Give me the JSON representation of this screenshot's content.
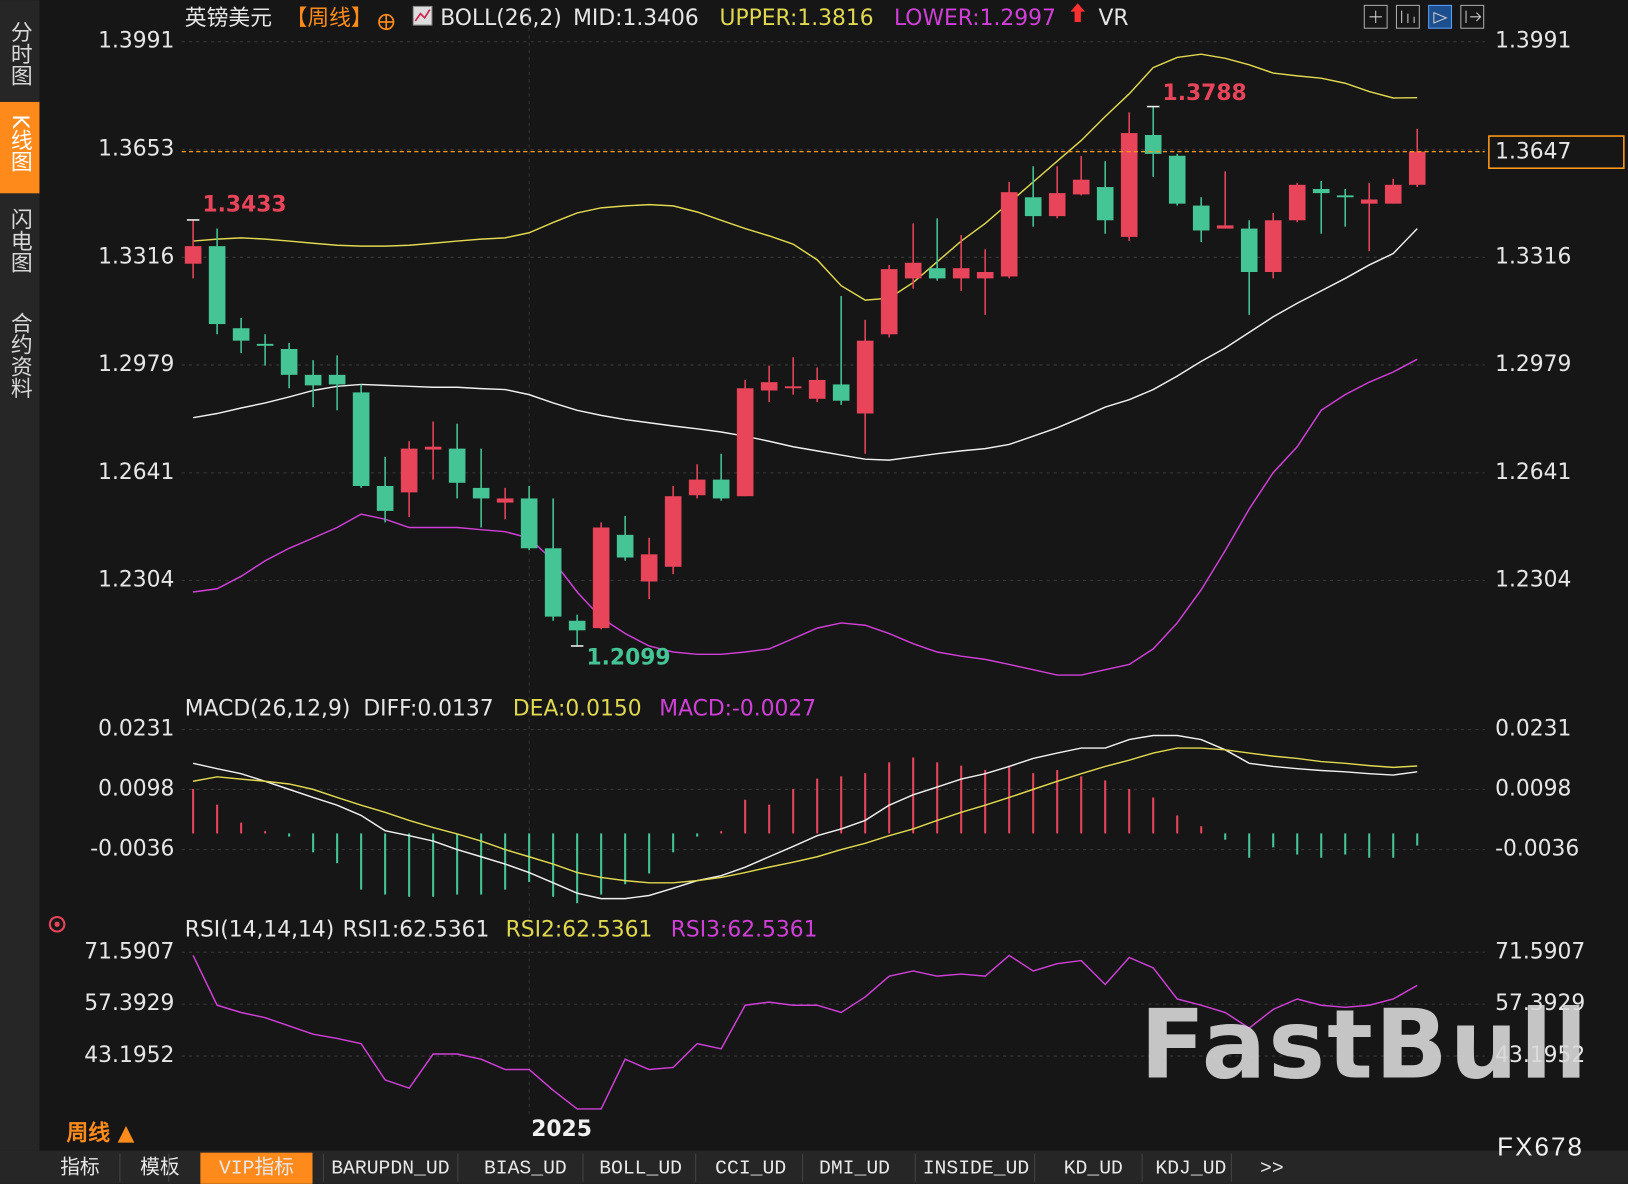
{
  "chart_data": [
    {
      "type": "candlestick",
      "legend": [
        {
          "text": "英镑美元",
          "color": "#e6e6e6"
        },
        {
          "text": "【周线】",
          "color": "#ff8c1a"
        },
        {
          "text": "BOLL(26,2)",
          "color": "#e6e6e6"
        },
        {
          "text": "MID:1.3406",
          "color": "#e6e6e6"
        },
        {
          "text": "UPPER:1.3816",
          "color": "#e0d850"
        },
        {
          "text": "LOWER:1.2997",
          "color": "#d040d8"
        },
        {
          "text": "VR",
          "color": "#e6e6e6"
        }
      ],
      "categories": [
        null,
        null,
        null,
        null,
        null,
        null,
        null,
        null,
        null,
        null,
        null,
        null,
        null,
        null,
        "2025",
        null,
        null,
        null,
        null,
        null,
        null,
        null,
        null,
        null,
        null,
        null,
        null,
        null,
        null,
        null,
        null,
        null,
        null,
        null,
        null,
        null,
        null,
        null,
        null,
        null,
        null,
        null,
        null,
        null,
        null,
        null,
        null,
        null,
        null,
        null,
        null,
        null
      ],
      "open": [
        1.3296,
        1.3351,
        1.3094,
        1.3045,
        1.3029,
        1.2948,
        1.2948,
        1.2893,
        1.26,
        1.258,
        1.2714,
        1.2717,
        1.2594,
        1.2548,
        1.2561,
        1.2405,
        1.2178,
        1.2155,
        1.2447,
        1.2301,
        1.2347,
        1.2571,
        1.262,
        1.2568,
        1.2899,
        1.2906,
        1.2873,
        1.2918,
        1.2827,
        1.3075,
        1.325,
        1.3282,
        1.325,
        1.325,
        1.3256,
        1.3504,
        1.3445,
        1.3513,
        1.3536,
        1.338,
        1.3699,
        1.3634,
        1.3478,
        1.3406,
        1.3406,
        1.327,
        1.3432,
        1.353,
        1.351,
        1.3484,
        1.3484,
        1.3543
      ],
      "high": [
        1.3433,
        1.3406,
        1.3126,
        1.3075,
        1.3048,
        1.2994,
        1.3009,
        1.2918,
        1.2691,
        1.274,
        1.2802,
        1.2795,
        1.2717,
        1.2594,
        1.26,
        1.2561,
        1.2197,
        1.2486,
        1.2506,
        1.2438,
        1.26,
        1.2668,
        1.2701,
        1.2932,
        1.2977,
        1.3003,
        1.2971,
        1.3195,
        1.312,
        1.3292,
        1.3422,
        1.3438,
        1.3386,
        1.3341,
        1.3552,
        1.3601,
        1.3601,
        1.3633,
        1.3617,
        1.377,
        1.3788,
        1.364,
        1.3504,
        1.3585,
        1.3432,
        1.3455,
        1.3549,
        1.3555,
        1.353,
        1.3549,
        1.3562,
        1.3718
      ],
      "low": [
        1.325,
        1.3075,
        1.3016,
        1.2977,
        1.2906,
        1.2847,
        1.2837,
        1.2594,
        1.2486,
        1.2503,
        1.262,
        1.2561,
        1.247,
        1.2496,
        1.2399,
        1.2178,
        1.2099,
        1.2151,
        1.2366,
        1.2246,
        1.2324,
        1.2561,
        1.2554,
        1.2568,
        1.2863,
        1.2886,
        1.2863,
        1.2854,
        1.2701,
        1.3065,
        1.3218,
        1.3243,
        1.3211,
        1.3136,
        1.325,
        1.3412,
        1.3438,
        1.351,
        1.339,
        1.3367,
        1.3568,
        1.3478,
        1.3364,
        1.3406,
        1.3136,
        1.325,
        1.3426,
        1.339,
        1.3412,
        1.3335,
        1.3484,
        1.3536
      ],
      "close": [
        1.3351,
        1.3107,
        1.3055,
        1.3039,
        1.2948,
        1.2915,
        1.2918,
        1.26,
        1.2522,
        1.2717,
        1.2723,
        1.261,
        1.2561,
        1.2561,
        1.2405,
        1.2191,
        1.2148,
        1.247,
        1.2376,
        1.2386,
        1.2568,
        1.262,
        1.2561,
        1.2906,
        1.2925,
        1.2912,
        1.2932,
        1.2867,
        1.3055,
        1.3279,
        1.3299,
        1.325,
        1.3282,
        1.327,
        1.352,
        1.3445,
        1.3517,
        1.3559,
        1.3432,
        1.3705,
        1.364,
        1.3484,
        1.34,
        1.3416,
        1.327,
        1.3432,
        1.3543,
        1.3517,
        1.3504,
        1.3497,
        1.3543,
        1.3647
      ],
      "up_color": "#e8445a",
      "down_color": "#45c495",
      "last_color": "#ff9a1a",
      "series": [
        {
          "color": "#e0d850",
          "values": [
            1.3367,
            1.3373,
            1.3377,
            1.3373,
            1.3367,
            1.336,
            1.3354,
            1.3351,
            1.3351,
            1.3354,
            1.336,
            1.3367,
            1.3373,
            1.3377,
            1.3393,
            1.3425,
            1.3455,
            1.3471,
            1.3477,
            1.3481,
            1.3477,
            1.3458,
            1.3432,
            1.3406,
            1.3383,
            1.3357,
            1.3308,
            1.3227,
            1.3182,
            1.3188,
            1.3237,
            1.3302,
            1.3367,
            1.3422,
            1.3487,
            1.3552,
            1.3617,
            1.3682,
            1.3757,
            1.3828,
            1.391,
            1.3942,
            1.3952,
            1.3939,
            1.3919,
            1.3893,
            1.3884,
            1.3877,
            1.3861,
            1.3835,
            1.3815,
            1.3816
          ]
        },
        {
          "color": "#f0f0f0",
          "values": [
            1.2814,
            1.2827,
            1.2844,
            1.286,
            1.2879,
            1.2899,
            1.2912,
            1.2918,
            1.2915,
            1.2912,
            1.2909,
            1.2909,
            1.2905,
            1.2902,
            1.2886,
            1.286,
            1.2837,
            1.2821,
            1.2808,
            1.2798,
            1.2788,
            1.2779,
            1.2769,
            1.2756,
            1.274,
            1.2723,
            1.271,
            1.2697,
            1.2684,
            1.2681,
            1.2691,
            1.2701,
            1.271,
            1.2717,
            1.273,
            1.2756,
            1.2782,
            1.2814,
            1.2847,
            1.287,
            1.2902,
            1.2944,
            1.299,
            1.3032,
            1.3081,
            1.313,
            1.3172,
            1.3211,
            1.325,
            1.3292,
            1.3328,
            1.3406
          ]
        },
        {
          "color": "#d040d8",
          "values": [
            1.2268,
            1.2278,
            1.2317,
            1.2366,
            1.2405,
            1.2437,
            1.247,
            1.2512,
            1.2496,
            1.247,
            1.247,
            1.247,
            1.2463,
            1.2457,
            1.2437,
            1.2366,
            1.2268,
            1.2187,
            1.2138,
            1.2099,
            1.208,
            1.2073,
            1.2073,
            1.208,
            1.209,
            1.2122,
            1.2155,
            1.2171,
            1.2164,
            1.2138,
            1.2106,
            1.208,
            1.2067,
            1.2057,
            1.2041,
            1.2025,
            1.2008,
            1.2008,
            1.2025,
            1.2041,
            1.209,
            1.2171,
            1.2275,
            1.2398,
            1.2528,
            1.2642,
            1.2723,
            1.2837,
            1.2886,
            1.2925,
            1.2957,
            1.2997
          ]
        }
      ],
      "ylim": [
        1.198,
        1.41
      ],
      "yticks": [
        1.3991,
        1.3653,
        1.3316,
        1.2979,
        1.2641,
        1.2304
      ],
      "grid": true
    },
    {
      "type": "bar",
      "legend": [
        {
          "text": "MACD(26,12,9)",
          "color": "#e6e6e6"
        },
        {
          "text": "DIFF:0.0137",
          "color": "#e6e6e6"
        },
        {
          "text": "DEA:0.0150",
          "color": "#e0d850"
        },
        {
          "text": "MACD:-0.0027",
          "color": "#d040d8"
        }
      ],
      "values": [
        0.0099,
        0.0064,
        0.0024,
        0.0005,
        -0.0007,
        -0.0042,
        -0.0066,
        -0.0125,
        -0.0136,
        -0.0141,
        -0.0141,
        -0.0136,
        -0.0136,
        -0.0125,
        -0.0108,
        -0.0141,
        -0.0155,
        -0.0136,
        -0.0113,
        -0.0089,
        -0.0042,
        -0.0007,
        0.0005,
        0.0075,
        0.0064,
        0.0099,
        0.0122,
        0.0127,
        0.0134,
        0.0158,
        0.0169,
        0.0158,
        0.0151,
        0.0141,
        0.0151,
        0.0134,
        0.0141,
        0.0127,
        0.0118,
        0.0099,
        0.008,
        0.004,
        0.0016,
        -0.0014,
        -0.0054,
        -0.0031,
        -0.0047,
        -0.0054,
        -0.0047,
        -0.0054,
        -0.0054,
        -0.0027
      ],
      "up_color": "#e8445a",
      "down_color": "#45c495",
      "series": [
        {
          "color": "#f0f0f0",
          "values": [
            0.0156,
            0.0144,
            0.0133,
            0.0116,
            0.0098,
            0.008,
            0.0063,
            0.004,
            0.0006,
            -0.0005,
            -0.0017,
            -0.0036,
            -0.0052,
            -0.0068,
            -0.0087,
            -0.011,
            -0.0133,
            -0.0145,
            -0.0145,
            -0.0138,
            -0.0122,
            -0.0105,
            -0.0094,
            -0.0075,
            -0.0052,
            -0.0029,
            -0.0005,
            0.001,
            0.0029,
            0.0063,
            0.0086,
            0.0103,
            0.0121,
            0.0133,
            0.0149,
            0.0167,
            0.0179,
            0.019,
            0.019,
            0.0209,
            0.0218,
            0.0218,
            0.0209,
            0.0186,
            0.0156,
            0.0149,
            0.0144,
            0.014,
            0.0137,
            0.0133,
            0.013,
            0.0137
          ]
        },
        {
          "color": "#e0d850",
          "values": [
            0.0116,
            0.0126,
            0.0121,
            0.0116,
            0.011,
            0.0098,
            0.008,
            0.0063,
            0.0047,
            0.0029,
            0.0013,
            -0.0001,
            -0.0017,
            -0.0036,
            -0.0052,
            -0.0068,
            -0.0087,
            -0.0098,
            -0.0105,
            -0.011,
            -0.011,
            -0.0105,
            -0.0098,
            -0.0087,
            -0.0075,
            -0.0064,
            -0.0052,
            -0.0036,
            -0.0022,
            -0.0005,
            0.001,
            0.0029,
            0.0047,
            0.0063,
            0.008,
            0.0098,
            0.0116,
            0.0133,
            0.0149,
            0.0163,
            0.0179,
            0.019,
            0.019,
            0.0186,
            0.0179,
            0.0172,
            0.0167,
            0.016,
            0.0156,
            0.0151,
            0.0147,
            0.015
          ]
        }
      ],
      "ylim": [
        -0.0179,
        0.026
      ],
      "yticks": [
        0.0231,
        0.0098,
        -0.0036
      ],
      "grid": true
    },
    {
      "type": "line",
      "legend": [
        {
          "text": "RSI(14,14,14)",
          "color": "#e6e6e6"
        },
        {
          "text": "RSI1:62.5361",
          "color": "#e6e6e6"
        },
        {
          "text": "RSI2:62.5361",
          "color": "#e0d850"
        },
        {
          "text": "RSI3:62.5361",
          "color": "#d040d8"
        }
      ],
      "series": [
        {
          "color": "#d040d8",
          "values": [
            70.74,
            57.11,
            55.12,
            53.7,
            51.43,
            49.16,
            48.02,
            46.6,
            36.66,
            34.39,
            43.76,
            43.76,
            42.34,
            39.5,
            39.5,
            33.82,
            28.71,
            28.71,
            42.34,
            39.5,
            40.07,
            46.6,
            45.18,
            57.11,
            57.96,
            57.11,
            57.11,
            55.12,
            59.38,
            65.06,
            66.48,
            65.06,
            65.63,
            65.06,
            70.74,
            66.48,
            68.47,
            69.32,
            62.79,
            70.17,
            67.33,
            58.81,
            57.11,
            55.12,
            50.86,
            55.97,
            58.81,
            57.11,
            56.54,
            57.11,
            58.81,
            62.5361
          ]
        }
      ],
      "ylim": [
        26.7,
        75.0
      ],
      "yticks": [
        71.5907,
        57.3929,
        43.1952
      ],
      "grid": true
    }
  ],
  "ui": {
    "side_tabs": [
      "分时图",
      "K线图",
      "闪电图",
      "合约资料"
    ],
    "period": "周线 ▲",
    "bottom_tabs": [
      "指标",
      "模板",
      "VIP指标",
      "BARUPDN_UD",
      "BIAS_UD",
      "BOLL_UD",
      "CCI_UD",
      "DMI_UD",
      "INSIDE_UD",
      "KD_UD",
      "KDJ_UD",
      ">>"
    ],
    "code": "FX678",
    "watermark": "FastBull"
  }
}
